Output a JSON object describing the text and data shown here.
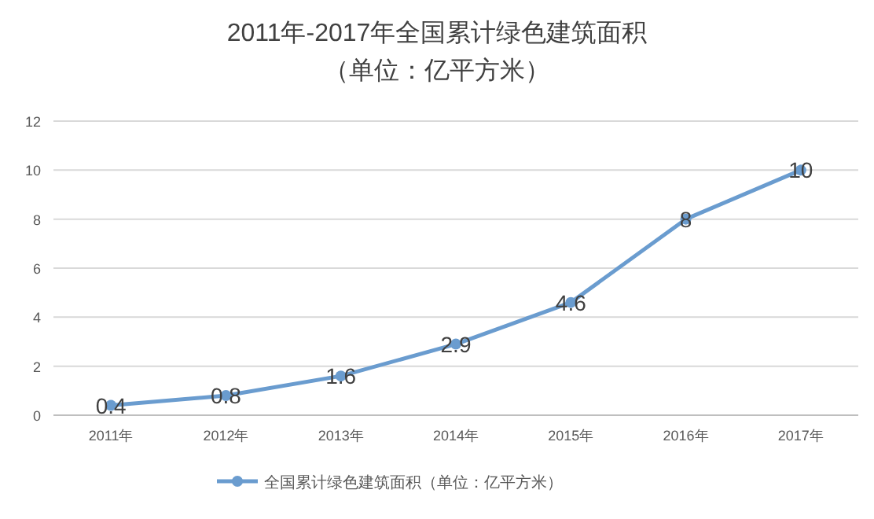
{
  "chart_data": {
    "type": "line",
    "title": "2011年-2017年全国累计绿色建筑面积",
    "subtitle": "（单位：亿平方米）",
    "categories": [
      "2011年",
      "2012年",
      "2013年",
      "2014年",
      "2015年",
      "2016年",
      "2017年"
    ],
    "series": [
      {
        "name": "全国累计绿色建筑面积（单位：亿平方米）",
        "color": "#6a9ccf",
        "values": [
          0.4,
          0.8,
          1.6,
          2.9,
          4.6,
          8,
          10
        ]
      }
    ],
    "ylim": [
      0,
      12
    ],
    "yticks": [
      0,
      2,
      4,
      6,
      8,
      10,
      12
    ],
    "grid": "y",
    "legend": "bottom",
    "marker": "circle",
    "data_labels": true
  }
}
